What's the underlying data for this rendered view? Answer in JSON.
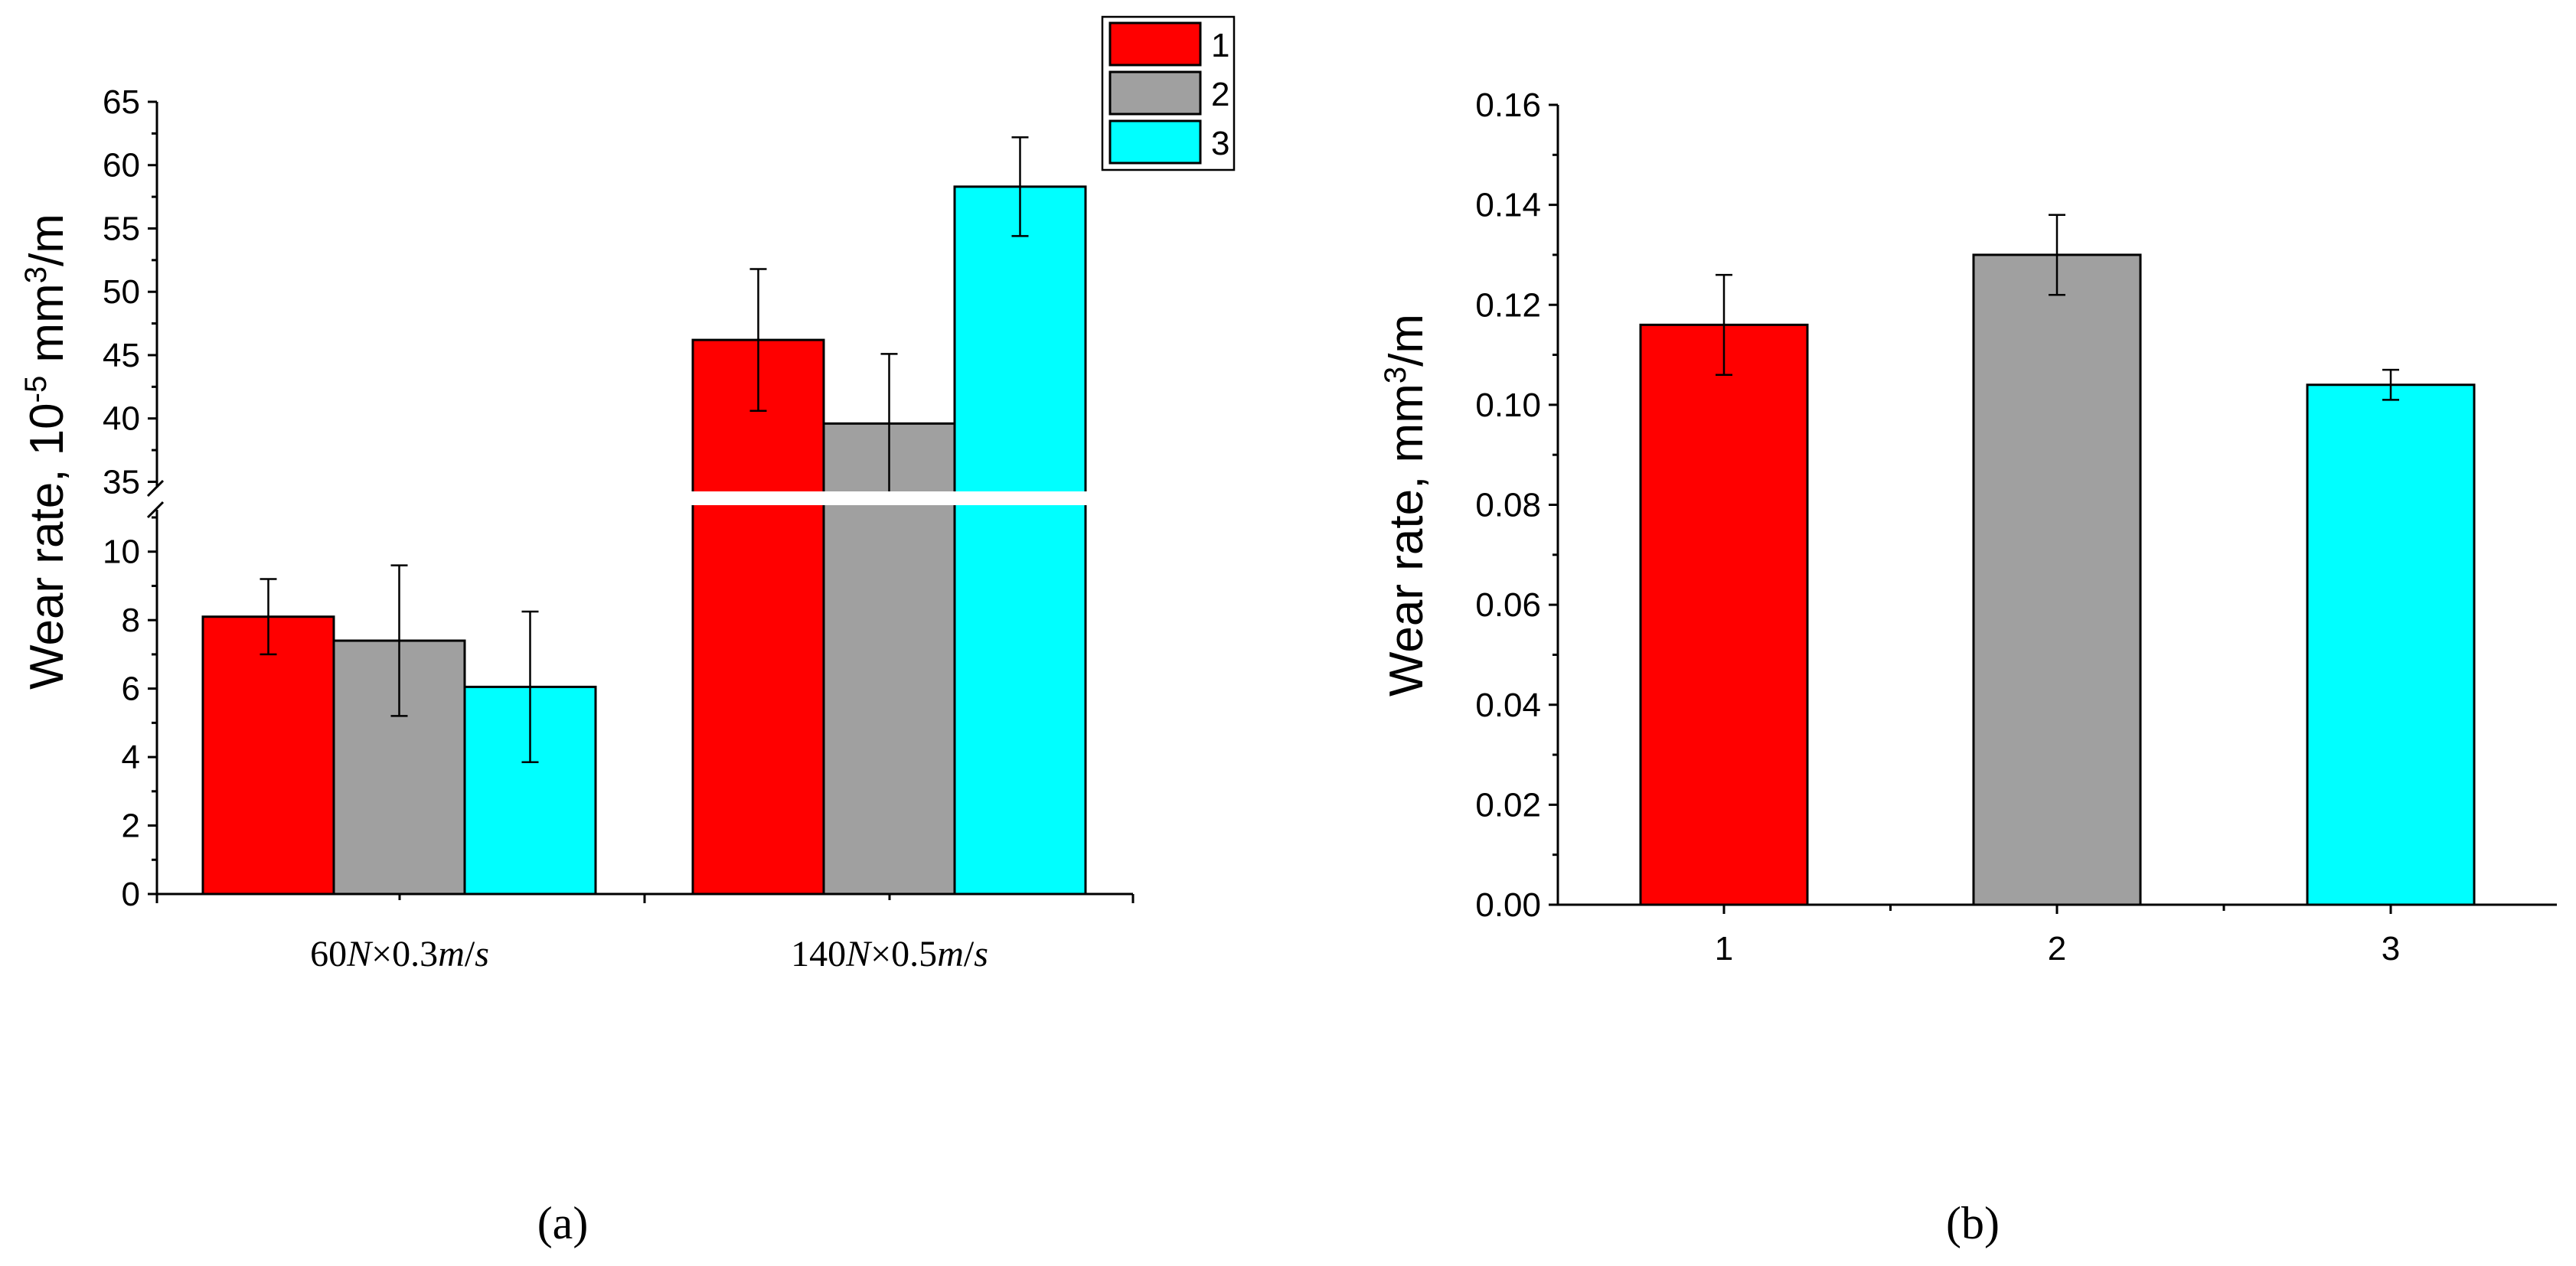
{
  "chart_data": [
    {
      "panel": "(a)",
      "type": "bar",
      "title": "",
      "xlabel": "",
      "ylabel_prefix": "Wear rate, 10",
      "ylabel_exp1": "-5",
      "ylabel_mid": " mm",
      "ylabel_exp2": "3",
      "ylabel_suffix": "/m",
      "categories": [
        {
          "parts": [
            {
              "t": "60",
              "it": false
            },
            {
              "t": "N",
              "it": true
            },
            {
              "t": "×0.3",
              "it": false
            },
            {
              "t": "m",
              "it": true
            },
            {
              "t": "/",
              "it": false
            },
            {
              "t": "s",
              "it": true
            }
          ]
        },
        {
          "parts": [
            {
              "t": "140",
              "it": false
            },
            {
              "t": "N",
              "it": true
            },
            {
              "t": "×0.5",
              "it": false
            },
            {
              "t": "m",
              "it": true
            },
            {
              "t": "/",
              "it": false
            },
            {
              "t": "s",
              "it": true
            }
          ]
        }
      ],
      "series": [
        {
          "name": "1",
          "color": "#ff0000",
          "values": [
            8.1,
            46.2
          ],
          "errors": [
            1.1,
            5.6
          ]
        },
        {
          "name": "2",
          "color": "#a0a0a0",
          "values": [
            7.4,
            39.6
          ],
          "errors": [
            2.2,
            5.5
          ]
        },
        {
          "name": "3",
          "color": "#00ffff",
          "values": [
            6.05,
            58.3
          ],
          "errors": [
            2.2,
            3.9
          ]
        }
      ],
      "y_break": {
        "lower_range": [
          0,
          11
        ],
        "upper_range": [
          34,
          65
        ]
      },
      "yticks_lower": [
        "0",
        "2",
        "4",
        "6",
        "8",
        "10"
      ],
      "yticks_upper": [
        "35",
        "40",
        "45",
        "50",
        "55",
        "60",
        "65"
      ],
      "legend": {
        "position": "top-right",
        "entries": [
          "1",
          "2",
          "3"
        ]
      }
    },
    {
      "panel": "(b)",
      "type": "bar",
      "title": "",
      "xlabel": "",
      "ylabel_prefix": "Wear rate, mm",
      "ylabel_exp": "3",
      "ylabel_suffix": "/m",
      "categories": [
        "1",
        "2",
        "3"
      ],
      "values": [
        0.116,
        0.13,
        0.104
      ],
      "errors": [
        0.01,
        0.008,
        0.003
      ],
      "colors": [
        "#ff0000",
        "#a0a0a0",
        "#00ffff"
      ],
      "ylim": [
        0,
        0.16
      ],
      "yticks": [
        "0.00",
        "0.02",
        "0.04",
        "0.06",
        "0.08",
        "0.10",
        "0.12",
        "0.14",
        "0.16"
      ]
    }
  ]
}
